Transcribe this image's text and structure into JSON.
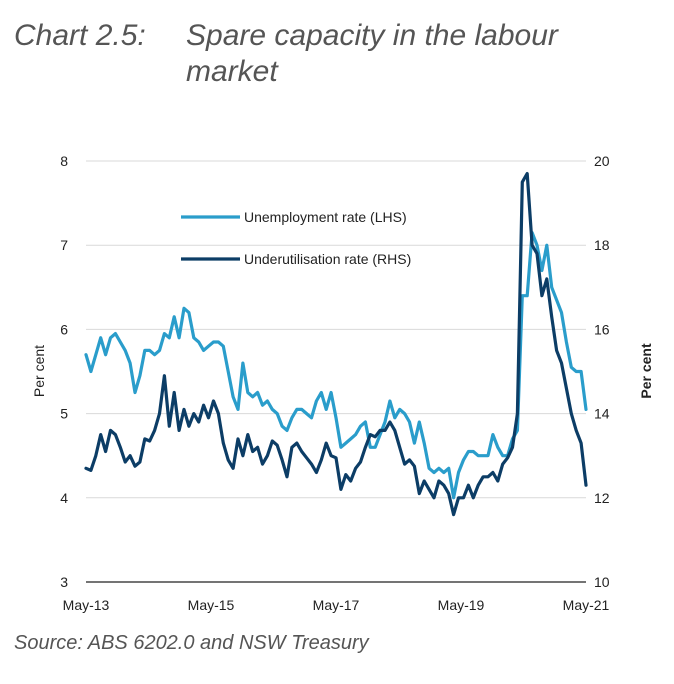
{
  "header": {
    "number": "Chart 2.5:",
    "title": "Spare capacity in the labour market"
  },
  "source": "Source: ABS 6202.0 and NSW Treasury",
  "chart_data": {
    "type": "line",
    "x_start": "May-13",
    "x_end": "May-21",
    "x_ticks": [
      "May-13",
      "May-15",
      "May-17",
      "May-19",
      "May-21"
    ],
    "ylabel_left": "Per cent",
    "ylabel_right": "Per cent",
    "ylim_left": [
      3,
      8
    ],
    "ylim_right": [
      10,
      20
    ],
    "yticks_left": [
      "3",
      "4",
      "5",
      "6",
      "7",
      "8"
    ],
    "yticks_right": [
      "10",
      "12",
      "14",
      "16",
      "18",
      "20"
    ],
    "grid": true,
    "legend_position": "upper-center",
    "series": [
      {
        "name": "Unemployment rate (LHS)",
        "axis": "left",
        "color": "#2a9dcb",
        "values": [
          5.7,
          5.5,
          5.7,
          5.9,
          5.7,
          5.9,
          5.95,
          5.85,
          5.75,
          5.6,
          5.25,
          5.45,
          5.75,
          5.75,
          5.7,
          5.75,
          5.95,
          5.9,
          6.15,
          5.9,
          6.25,
          6.2,
          5.9,
          5.85,
          5.75,
          5.8,
          5.85,
          5.85,
          5.8,
          5.5,
          5.2,
          5.05,
          5.6,
          5.25,
          5.2,
          5.25,
          5.1,
          5.15,
          5.05,
          5.0,
          4.85,
          4.8,
          4.95,
          5.05,
          5.05,
          5.0,
          4.95,
          5.15,
          5.25,
          5.05,
          5.25,
          4.95,
          4.6,
          4.65,
          4.7,
          4.75,
          4.85,
          4.9,
          4.6,
          4.6,
          4.75,
          4.9,
          5.15,
          4.95,
          5.05,
          5.0,
          4.9,
          4.65,
          4.9,
          4.65,
          4.35,
          4.3,
          4.35,
          4.3,
          4.35,
          4.0,
          4.3,
          4.45,
          4.55,
          4.55,
          4.5,
          4.5,
          4.5,
          4.75,
          4.6,
          4.5,
          4.5,
          4.7,
          4.8,
          6.4,
          6.4,
          7.15,
          7.0,
          6.7,
          7.0,
          6.5,
          6.35,
          6.2,
          5.85,
          5.55,
          5.5,
          5.5,
          5.05
        ]
      },
      {
        "name": "Underutilisation rate (RHS)",
        "axis": "right",
        "color": "#0c3d66",
        "values": [
          12.7,
          12.65,
          13.0,
          13.5,
          13.1,
          13.6,
          13.5,
          13.2,
          12.85,
          13.0,
          12.75,
          12.85,
          13.4,
          13.35,
          13.6,
          14.0,
          14.9,
          13.7,
          14.5,
          13.6,
          14.1,
          13.7,
          14.0,
          13.8,
          14.2,
          13.9,
          14.3,
          14.0,
          13.3,
          12.9,
          12.7,
          13.4,
          13.0,
          13.5,
          13.1,
          13.2,
          12.8,
          13.0,
          13.35,
          13.25,
          12.9,
          12.5,
          13.2,
          13.3,
          13.1,
          12.95,
          12.8,
          12.6,
          12.9,
          13.3,
          13.0,
          12.95,
          12.2,
          12.55,
          12.4,
          12.7,
          12.85,
          13.2,
          13.5,
          13.45,
          13.6,
          13.6,
          13.8,
          13.6,
          13.2,
          12.8,
          12.9,
          12.75,
          12.1,
          12.4,
          12.2,
          12.0,
          12.4,
          12.3,
          12.1,
          11.6,
          12.0,
          12.0,
          12.3,
          12.0,
          12.3,
          12.5,
          12.5,
          12.6,
          12.4,
          12.8,
          12.95,
          13.2,
          14.0,
          19.5,
          19.7,
          18.0,
          17.8,
          16.8,
          17.2,
          16.3,
          15.5,
          15.2,
          14.6,
          14.0,
          13.6,
          13.3,
          12.3
        ]
      }
    ]
  }
}
